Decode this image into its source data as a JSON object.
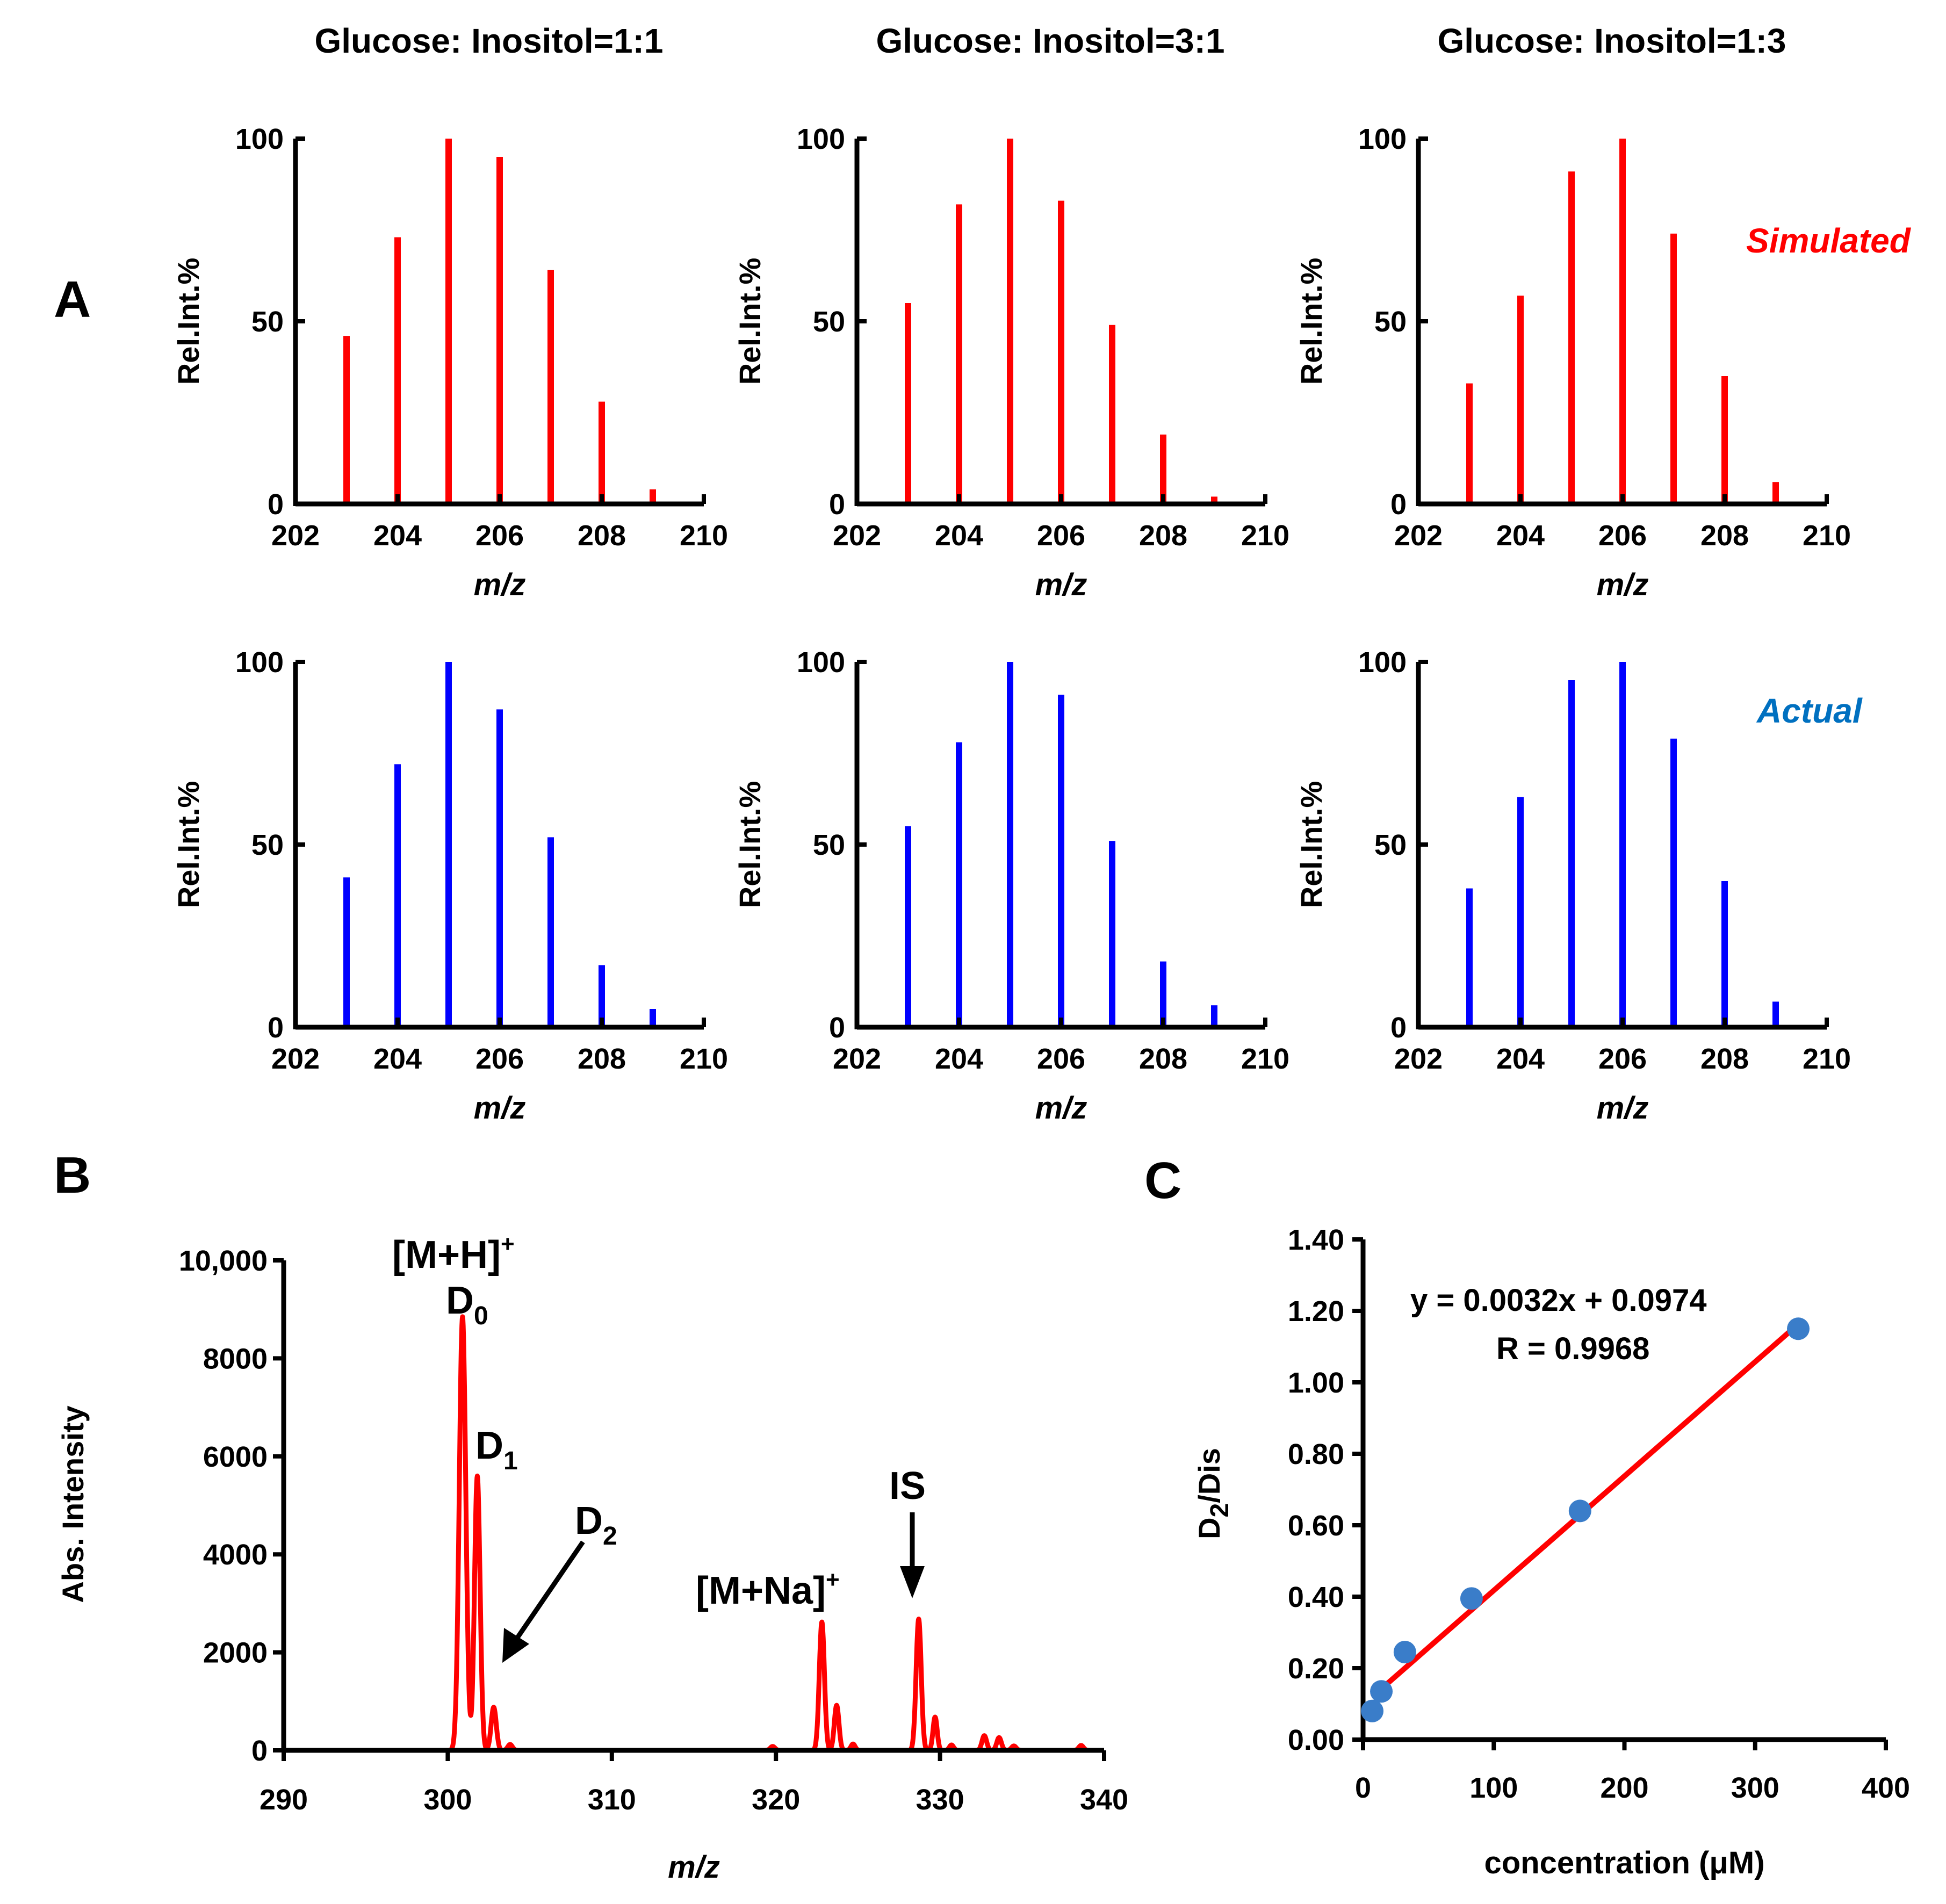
{
  "panel_labels": {
    "a": "A",
    "b": "B",
    "c": "C"
  },
  "legend": {
    "simulated": "Simulated",
    "actual": "Actual"
  },
  "colors": {
    "simulated": "#ff0000",
    "actual": "#0000ff",
    "actual_legend": "#0070c0",
    "points": "#3a7dc9",
    "fit": "#ff0000"
  },
  "chart_data": [
    {
      "id": "sim_1_1",
      "type": "bar",
      "title": "Glucose: Inositol=1:1",
      "xlabel": "m/z",
      "ylabel": "Rel.Int.%",
      "x": [
        203,
        204,
        205,
        206,
        207,
        208,
        209
      ],
      "values": [
        46,
        73,
        100,
        95,
        64,
        28,
        4
      ],
      "xlim": [
        202,
        210
      ],
      "ylim": [
        0,
        100
      ],
      "xticks": [
        "202",
        "204",
        "206",
        "208",
        "210"
      ],
      "yticks": [
        "0",
        "50",
        "100"
      ]
    },
    {
      "id": "sim_3_1",
      "type": "bar",
      "title": "Glucose: Inositol=3:1",
      "xlabel": "m/z",
      "ylabel": "Rel.Int.%",
      "x": [
        203,
        204,
        205,
        206,
        207,
        208,
        209
      ],
      "values": [
        55,
        82,
        100,
        83,
        49,
        19,
        2
      ],
      "xlim": [
        202,
        210
      ],
      "ylim": [
        0,
        100
      ],
      "xticks": [
        "202",
        "204",
        "206",
        "208",
        "210"
      ],
      "yticks": [
        "0",
        "50",
        "100"
      ]
    },
    {
      "id": "sim_1_3",
      "type": "bar",
      "title": "Glucose: Inositol=1:3",
      "xlabel": "m/z",
      "ylabel": "Rel.Int.%",
      "x": [
        203,
        204,
        205,
        206,
        207,
        208,
        209
      ],
      "values": [
        33,
        57,
        91,
        100,
        74,
        35,
        6
      ],
      "xlim": [
        202,
        210
      ],
      "ylim": [
        0,
        100
      ],
      "xticks": [
        "202",
        "204",
        "206",
        "208",
        "210"
      ],
      "yticks": [
        "0",
        "50",
        "100"
      ]
    },
    {
      "id": "act_1_1",
      "type": "bar",
      "title": "",
      "xlabel": "m/z",
      "ylabel": "Rel.Int.%",
      "x": [
        203,
        204,
        205,
        206,
        207,
        208,
        209
      ],
      "values": [
        41,
        72,
        100,
        87,
        52,
        17,
        5
      ],
      "xlim": [
        202,
        210
      ],
      "ylim": [
        0,
        100
      ],
      "xticks": [
        "202",
        "204",
        "206",
        "208",
        "210"
      ],
      "yticks": [
        "0",
        "50",
        "100"
      ]
    },
    {
      "id": "act_3_1",
      "type": "bar",
      "title": "",
      "xlabel": "m/z",
      "ylabel": "Rel.Int.%",
      "x": [
        203,
        204,
        205,
        206,
        207,
        208,
        209
      ],
      "values": [
        55,
        78,
        100,
        91,
        51,
        18,
        6
      ],
      "xlim": [
        202,
        210
      ],
      "ylim": [
        0,
        100
      ],
      "xticks": [
        "202",
        "204",
        "206",
        "208",
        "210"
      ],
      "yticks": [
        "0",
        "50",
        "100"
      ]
    },
    {
      "id": "act_1_3",
      "type": "bar",
      "title": "",
      "xlabel": "m/z",
      "ylabel": "Rel.Int.%",
      "x": [
        203,
        204,
        205,
        206,
        207,
        208,
        209
      ],
      "values": [
        38,
        63,
        95,
        100,
        79,
        40,
        7
      ],
      "xlim": [
        202,
        210
      ],
      "ylim": [
        0,
        100
      ],
      "xticks": [
        "202",
        "204",
        "206",
        "208",
        "210"
      ],
      "yticks": [
        "0",
        "50",
        "100"
      ]
    },
    {
      "id": "spectrum_B",
      "type": "line",
      "xlabel": "m/z",
      "ylabel": "Abs. Intensity",
      "xlim": [
        290,
        340
      ],
      "ylim": [
        0,
        10000
      ],
      "xticks": [
        "290",
        "300",
        "310",
        "320",
        "330",
        "340"
      ],
      "yticks": [
        "0",
        "2000",
        "4000",
        "6000",
        "8000",
        "10,000"
      ],
      "peaks": [
        {
          "mz": 300.9,
          "intensity": 8850,
          "width": 0.28
        },
        {
          "mz": 301.8,
          "intensity": 5600,
          "width": 0.24
        },
        {
          "mz": 302.8,
          "intensity": 880,
          "width": 0.22
        },
        {
          "mz": 303.8,
          "intensity": 120,
          "width": 0.2
        },
        {
          "mz": 319.8,
          "intensity": 80,
          "width": 0.2
        },
        {
          "mz": 322.8,
          "intensity": 2620,
          "width": 0.22
        },
        {
          "mz": 323.7,
          "intensity": 920,
          "width": 0.2
        },
        {
          "mz": 324.7,
          "intensity": 130,
          "width": 0.18
        },
        {
          "mz": 328.7,
          "intensity": 2680,
          "width": 0.22
        },
        {
          "mz": 329.7,
          "intensity": 680,
          "width": 0.18
        },
        {
          "mz": 330.7,
          "intensity": 110,
          "width": 0.18
        },
        {
          "mz": 332.7,
          "intensity": 300,
          "width": 0.2
        },
        {
          "mz": 333.6,
          "intensity": 260,
          "width": 0.2
        },
        {
          "mz": 334.5,
          "intensity": 90,
          "width": 0.2
        },
        {
          "mz": 338.6,
          "intensity": 100,
          "width": 0.2
        }
      ],
      "annotations": {
        "mh_main": "[M+H]",
        "mh_sup": "+",
        "d0_main": "D",
        "d0_sub": "0",
        "d1_main": "D",
        "d1_sub": "1",
        "d2_main": "D",
        "d2_sub": "2",
        "mna_main": "[M+Na]",
        "mna_sup": "+",
        "is": "IS"
      }
    },
    {
      "id": "calibration_C",
      "type": "scatter",
      "xlabel": "concentration (μM)",
      "ylabel_main": "D",
      "ylabel_sub": "2",
      "ylabel_rest": "/Dis",
      "x": [
        7,
        14,
        32,
        83,
        166,
        333
      ],
      "y": [
        0.08,
        0.135,
        0.245,
        0.395,
        0.64,
        1.15
      ],
      "fit": {
        "slope": 0.0032,
        "intercept": 0.0974,
        "x_range": [
          7,
          333
        ]
      },
      "equation": "y = 0.0032x + 0.0974",
      "r_text": "R = 0.9968",
      "xlim": [
        0,
        400
      ],
      "ylim": [
        0,
        1.4
      ],
      "xticks": [
        "0",
        "100",
        "200",
        "300",
        "400"
      ],
      "yticks": [
        "0.00",
        "0.20",
        "0.40",
        "0.60",
        "0.80",
        "1.00",
        "1.20",
        "1.40"
      ]
    }
  ]
}
